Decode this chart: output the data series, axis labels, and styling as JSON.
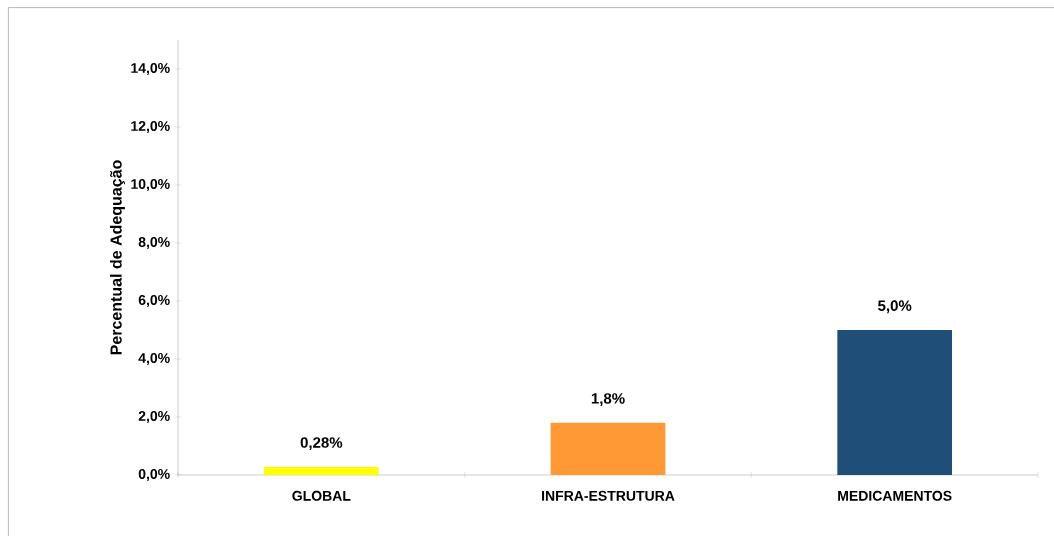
{
  "chart_data": {
    "type": "bar",
    "ylabel": "Percentual de Adequação",
    "categories": [
      "GLOBAL",
      "INFRA-ESTRUTURA",
      "MEDICAMENTOS"
    ],
    "values": [
      0.28,
      1.8,
      5.0
    ],
    "colors": [
      "#ffff00",
      "#ff9933",
      "#1f4e79"
    ],
    "value_labels": [
      "0,28%",
      "1,8%",
      "5,0%"
    ],
    "ylim": [
      0,
      15
    ],
    "yticks": [
      {
        "value": 0,
        "label": "0,0%"
      },
      {
        "value": 2,
        "label": "2,0%"
      },
      {
        "value": 4,
        "label": "4,0%"
      },
      {
        "value": 6,
        "label": "6,0%"
      },
      {
        "value": 8,
        "label": "8,0%"
      },
      {
        "value": 10,
        "label": "10,0%"
      },
      {
        "value": 12,
        "label": "12,0%"
      },
      {
        "value": 14,
        "label": "14,0%"
      }
    ]
  }
}
